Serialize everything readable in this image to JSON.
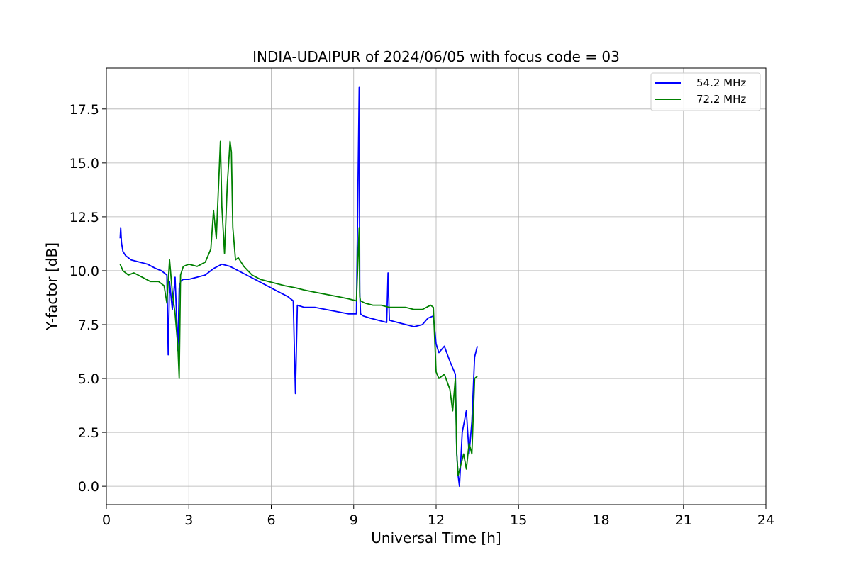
{
  "chart_data": {
    "type": "line",
    "title": "INDIA-UDAIPUR of 2024/06/05 with focus code = 03",
    "xlabel": "Universal Time [h]",
    "ylabel": "Y-factor [dB]",
    "xlim": [
      0,
      24
    ],
    "ylim": [
      -0.85,
      19.4
    ],
    "xticks": [
      0,
      3,
      6,
      9,
      12,
      15,
      18,
      21,
      24
    ],
    "yticks": [
      0.0,
      2.5,
      5.0,
      7.5,
      10.0,
      12.5,
      15.0,
      17.5
    ],
    "xtick_labels": [
      "0",
      "3",
      "6",
      "9",
      "12",
      "15",
      "18",
      "21",
      "24"
    ],
    "ytick_labels": [
      "0.0",
      "2.5",
      "5.0",
      "7.5",
      "10.0",
      "12.5",
      "15.0",
      "17.5"
    ],
    "grid": true,
    "legend_position": "top-right",
    "series": [
      {
        "name": "54.2 MHz",
        "color": "#0000ff",
        "x": [
          0.5,
          0.52,
          0.55,
          0.6,
          0.7,
          0.9,
          1.2,
          1.5,
          1.8,
          2.0,
          2.2,
          2.25,
          2.3,
          2.4,
          2.5,
          2.6,
          2.65,
          2.7,
          2.8,
          3.0,
          3.3,
          3.6,
          3.9,
          4.2,
          4.5,
          4.8,
          5.1,
          5.4,
          5.7,
          6.0,
          6.3,
          6.6,
          6.8,
          6.88,
          6.95,
          7.2,
          7.6,
          8.0,
          8.4,
          8.8,
          9.1,
          9.2,
          9.22,
          9.25,
          9.35,
          9.6,
          9.9,
          10.2,
          10.25,
          10.3,
          10.6,
          10.9,
          11.2,
          11.5,
          11.7,
          11.9,
          12.0,
          12.1,
          12.3,
          12.5,
          12.7,
          12.75,
          12.8,
          12.85,
          12.95,
          13.1,
          13.2,
          13.3,
          13.4,
          13.5
        ],
        "values": [
          11.5,
          12.0,
          11.3,
          10.9,
          10.7,
          10.5,
          10.4,
          10.3,
          10.1,
          10.0,
          9.8,
          6.1,
          9.5,
          8.2,
          9.7,
          6.3,
          9.2,
          9.5,
          9.6,
          9.6,
          9.7,
          9.8,
          10.1,
          10.3,
          10.2,
          10.0,
          9.8,
          9.6,
          9.4,
          9.2,
          9.0,
          8.8,
          8.6,
          4.3,
          8.4,
          8.3,
          8.3,
          8.2,
          8.1,
          8.0,
          8.0,
          18.5,
          9.0,
          8.0,
          7.9,
          7.8,
          7.7,
          7.6,
          9.9,
          7.7,
          7.6,
          7.5,
          7.4,
          7.5,
          7.8,
          7.9,
          6.6,
          6.2,
          6.5,
          5.8,
          5.2,
          1.5,
          0.5,
          0.0,
          2.5,
          3.5,
          1.5,
          3.0,
          6.0,
          6.5
        ]
      },
      {
        "name": "72.2 MHz",
        "color": "#008000",
        "x": [
          0.5,
          0.6,
          0.8,
          1.0,
          1.3,
          1.6,
          1.9,
          2.1,
          2.2,
          2.3,
          2.4,
          2.5,
          2.6,
          2.65,
          2.7,
          2.8,
          3.0,
          3.3,
          3.6,
          3.8,
          3.9,
          4.0,
          4.1,
          4.15,
          4.2,
          4.3,
          4.4,
          4.5,
          4.55,
          4.6,
          4.7,
          4.8,
          5.0,
          5.3,
          5.6,
          5.9,
          6.2,
          6.5,
          6.9,
          7.2,
          7.6,
          8.0,
          8.4,
          8.8,
          9.1,
          9.2,
          9.22,
          9.25,
          9.4,
          9.7,
          10.0,
          10.3,
          10.6,
          10.9,
          11.2,
          11.5,
          11.8,
          11.9,
          12.0,
          12.1,
          12.3,
          12.5,
          12.6,
          12.7,
          12.75,
          12.8,
          12.9,
          13.0,
          13.1,
          13.2,
          13.3,
          13.4,
          13.5
        ],
        "values": [
          10.3,
          10.0,
          9.8,
          9.9,
          9.7,
          9.5,
          9.5,
          9.3,
          8.5,
          10.5,
          9.0,
          8.0,
          6.5,
          5.0,
          9.8,
          10.2,
          10.3,
          10.2,
          10.4,
          11.0,
          12.8,
          11.5,
          14.5,
          16.0,
          13.0,
          10.8,
          14.0,
          16.0,
          15.5,
          12.0,
          10.5,
          10.6,
          10.2,
          9.8,
          9.6,
          9.5,
          9.4,
          9.3,
          9.2,
          9.1,
          9.0,
          8.9,
          8.8,
          8.7,
          8.6,
          12.0,
          8.8,
          8.6,
          8.5,
          8.4,
          8.4,
          8.3,
          8.3,
          8.3,
          8.2,
          8.2,
          8.4,
          8.3,
          5.3,
          5.0,
          5.2,
          4.5,
          3.5,
          5.0,
          1.5,
          0.5,
          1.0,
          1.5,
          0.8,
          2.0,
          1.5,
          5.0,
          5.1
        ]
      }
    ]
  }
}
